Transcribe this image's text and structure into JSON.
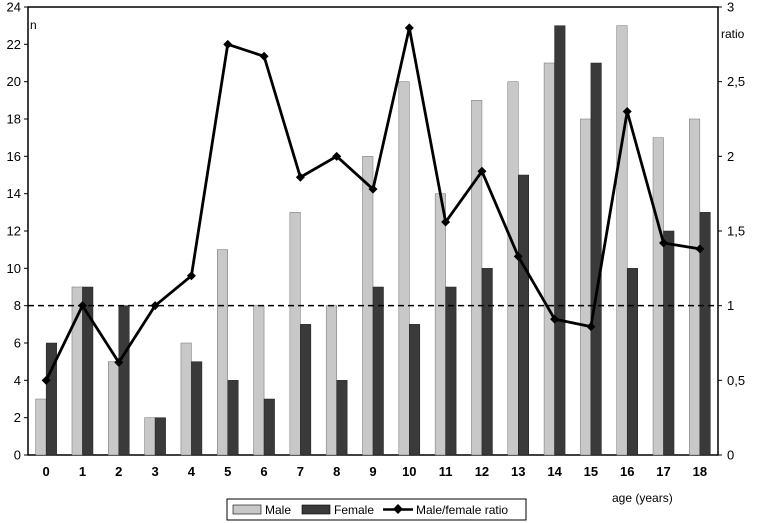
{
  "chart_data": {
    "type": "bar",
    "title": "",
    "xlabel": "age (years)",
    "ylabel_left": "n",
    "ylabel_right": "ratio",
    "categories": [
      "0",
      "1",
      "2",
      "3",
      "4",
      "5",
      "6",
      "7",
      "8",
      "9",
      "10",
      "11",
      "12",
      "13",
      "14",
      "15",
      "16",
      "17",
      "18"
    ],
    "left_axis": {
      "ylim": [
        0,
        24
      ],
      "ticks": [
        "0",
        "2",
        "4",
        "6",
        "8",
        "10",
        "12",
        "14",
        "16",
        "18",
        "20",
        "22",
        "24"
      ]
    },
    "right_axis": {
      "ylim": [
        0,
        3
      ],
      "ticks": [
        "0",
        "0,5",
        "1",
        "1,5",
        "2",
        "2,5",
        "3"
      ]
    },
    "series": [
      {
        "name": "Male",
        "kind": "bar",
        "axis": "left",
        "color": "#c8c8c8",
        "values": [
          3,
          9,
          5,
          2,
          6,
          11,
          8,
          13,
          8,
          16,
          20,
          14,
          19,
          20,
          21,
          18,
          23,
          17,
          18
        ]
      },
      {
        "name": "Female",
        "kind": "bar",
        "axis": "left",
        "color": "#3a3a3a",
        "values": [
          6,
          9,
          8,
          2,
          5,
          4,
          3,
          7,
          4,
          9,
          7,
          9,
          10,
          15,
          23,
          21,
          10,
          12,
          13
        ]
      },
      {
        "name": "Male/female ratio",
        "kind": "line",
        "axis": "right",
        "color": "#000000",
        "values": [
          0.5,
          1.0,
          0.62,
          1.0,
          1.2,
          2.75,
          2.67,
          1.86,
          2.0,
          1.78,
          2.86,
          1.56,
          1.9,
          1.33,
          0.91,
          0.86,
          2.3,
          1.42,
          1.38
        ]
      }
    ],
    "reference_line": {
      "axis": "right",
      "value": 1,
      "style": "dashed"
    },
    "grid": false,
    "legend_position": "bottom"
  }
}
